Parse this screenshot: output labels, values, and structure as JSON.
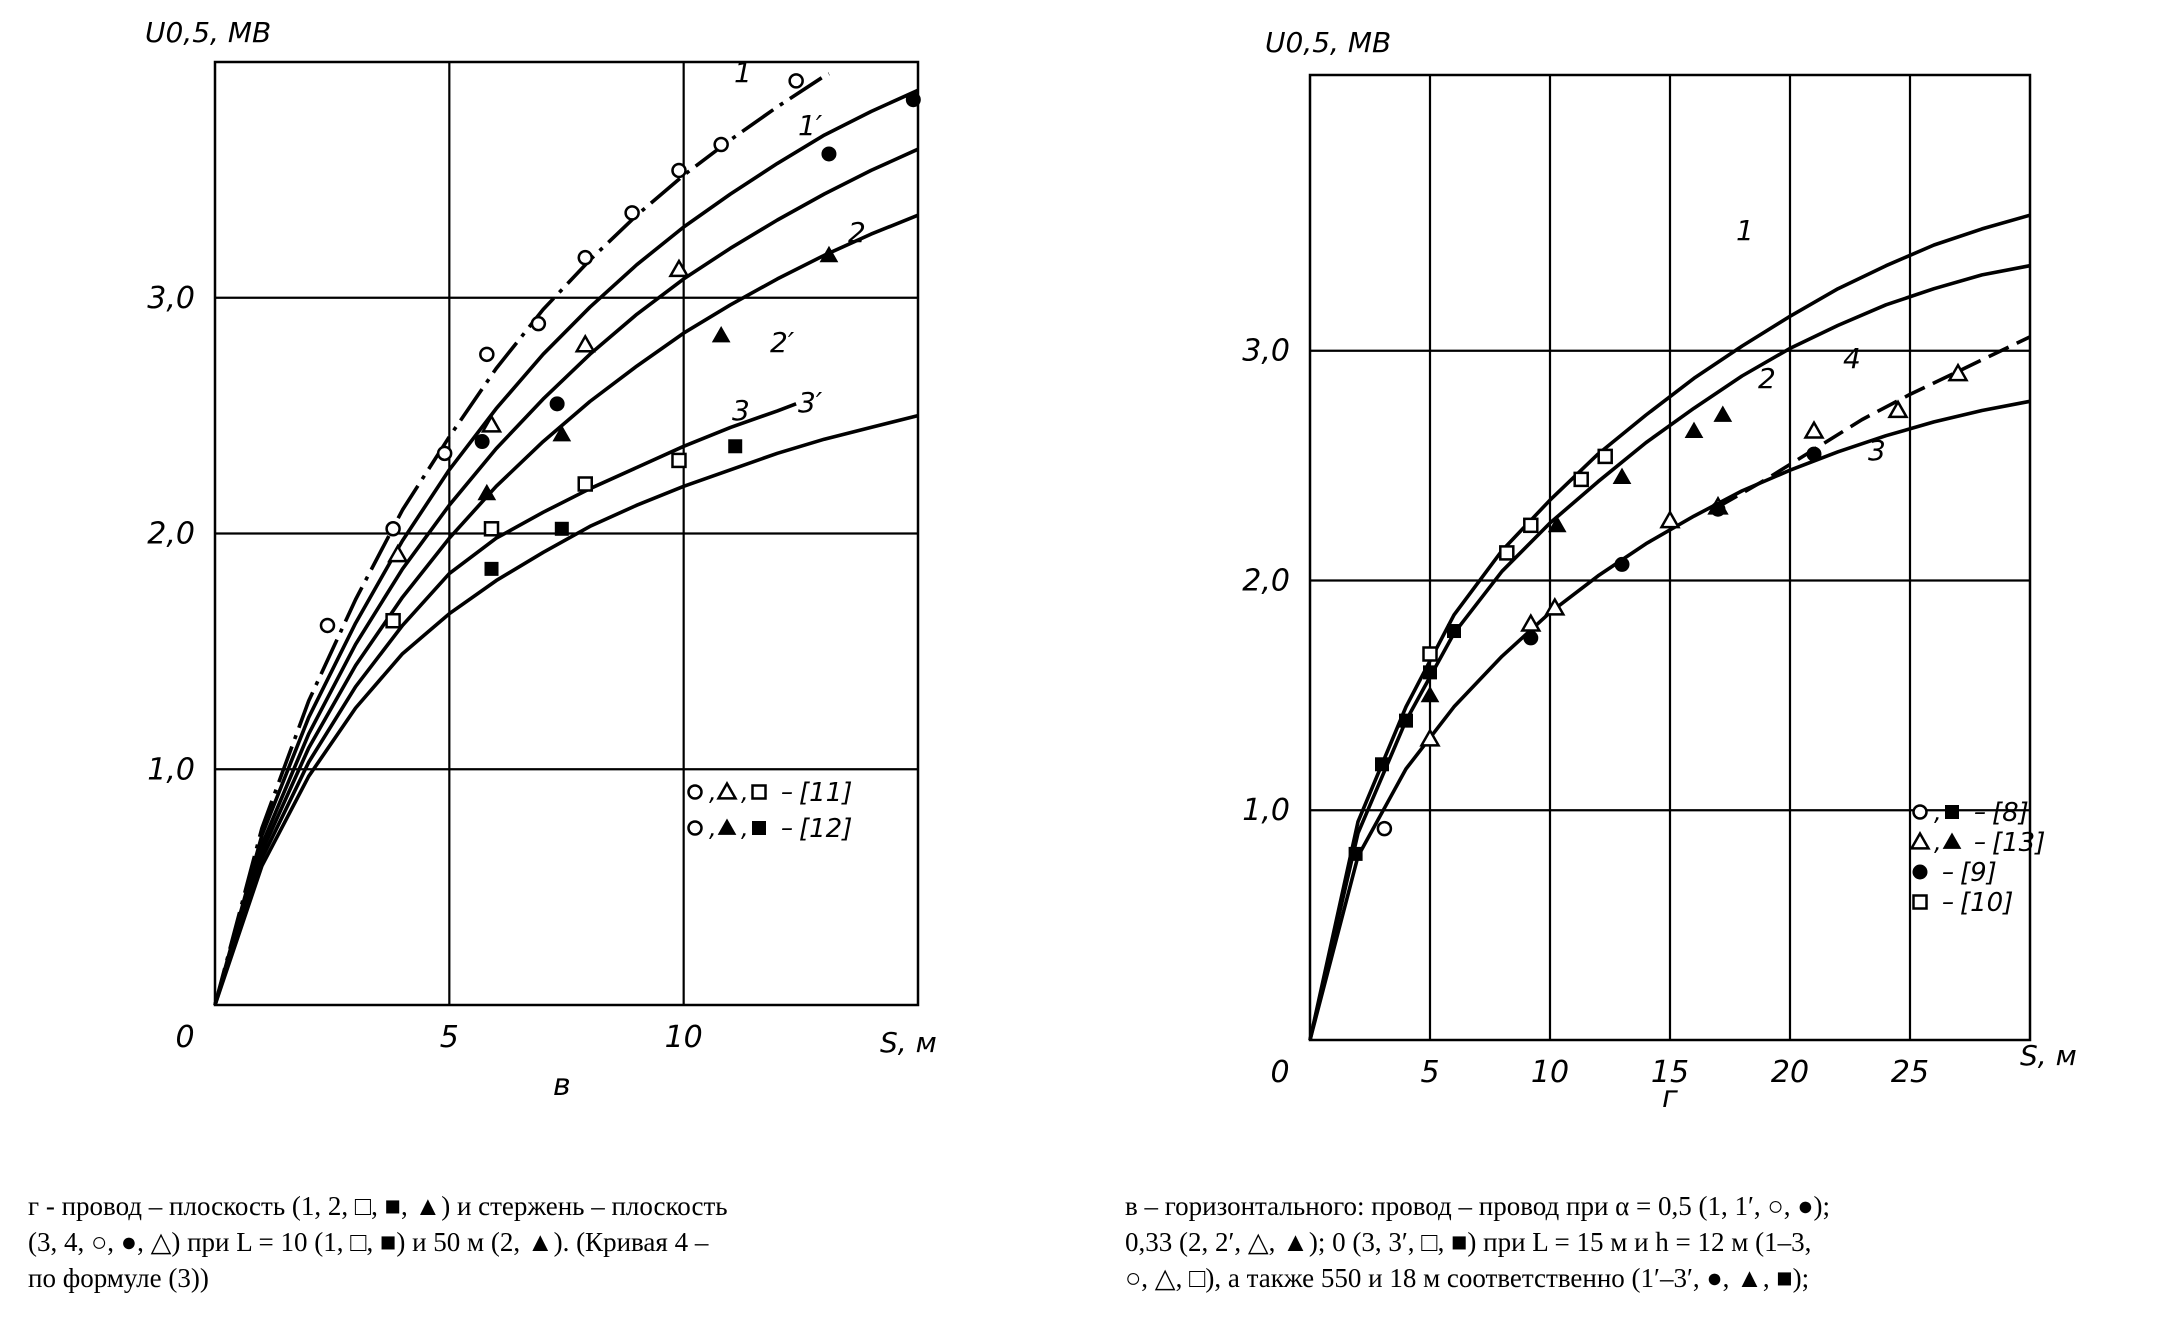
{
  "chart_data": [
    {
      "type": "line",
      "panel_label": "в",
      "ylabel": "U0,5, МВ",
      "xlabel": "S, м",
      "xlim": [
        0,
        15
      ],
      "ylim": [
        0,
        4.0
      ],
      "x_ticks": [
        0,
        5,
        10
      ],
      "x_tick_labels": [
        "0",
        "5",
        "10"
      ],
      "y_ticks": [
        1.0,
        2.0,
        3.0
      ],
      "y_tick_labels": [
        "1,0",
        "2,0",
        "3,0"
      ],
      "grid": true,
      "series": [
        {
          "name": "1",
          "style": "dashdot",
          "x": [
            0,
            1,
            2,
            3,
            4,
            5,
            6,
            7,
            8,
            9,
            10,
            11,
            12,
            13,
            13.1
          ],
          "y": [
            0,
            0.75,
            1.29,
            1.72,
            2.1,
            2.41,
            2.7,
            2.95,
            3.16,
            3.35,
            3.52,
            3.67,
            3.81,
            3.94,
            3.95
          ]
        },
        {
          "name": "1′",
          "style": "solid",
          "x": [
            0,
            1,
            2,
            3,
            4,
            5,
            6,
            7,
            8,
            9,
            10,
            11,
            12,
            13,
            14,
            15
          ],
          "y": [
            0,
            0.72,
            1.22,
            1.62,
            1.97,
            2.27,
            2.53,
            2.76,
            2.96,
            3.14,
            3.3,
            3.44,
            3.57,
            3.69,
            3.79,
            3.88
          ]
        },
        {
          "name": "2",
          "style": "solid",
          "x": [
            0,
            1,
            2,
            3,
            4,
            5,
            6,
            7,
            8,
            9,
            10,
            11,
            12,
            13,
            14,
            15
          ],
          "y": [
            0,
            0.68,
            1.15,
            1.53,
            1.85,
            2.12,
            2.36,
            2.57,
            2.76,
            2.93,
            3.08,
            3.21,
            3.33,
            3.44,
            3.54,
            3.63
          ]
        },
        {
          "name": "2′",
          "style": "solid",
          "x": [
            0,
            1,
            2,
            3,
            4,
            5,
            6,
            7,
            8,
            9,
            10,
            11,
            12,
            13,
            14,
            15
          ],
          "y": [
            0,
            0.65,
            1.09,
            1.44,
            1.73,
            1.98,
            2.2,
            2.39,
            2.56,
            2.71,
            2.85,
            2.97,
            3.08,
            3.18,
            3.27,
            3.35
          ]
        },
        {
          "name": "3",
          "style": "solid",
          "x": [
            0,
            1,
            2,
            3,
            4,
            5,
            6,
            7,
            8,
            9,
            10,
            11,
            12,
            12.4
          ],
          "y": [
            0,
            0.62,
            1.03,
            1.35,
            1.61,
            1.83,
            1.98,
            2.09,
            2.19,
            2.28,
            2.37,
            2.45,
            2.52,
            2.55
          ]
        },
        {
          "name": "3′",
          "style": "solid",
          "x": [
            0,
            1,
            2,
            3,
            4,
            5,
            6,
            7,
            8,
            9,
            10,
            11,
            12,
            13,
            14,
            15
          ],
          "y": [
            0,
            0.59,
            0.97,
            1.26,
            1.49,
            1.66,
            1.8,
            1.92,
            2.03,
            2.12,
            2.2,
            2.27,
            2.34,
            2.4,
            2.45,
            2.5
          ]
        }
      ],
      "points": [
        {
          "marker": "o",
          "x": [
            2.4,
            3.8,
            4.9,
            5.8,
            6.9,
            7.9,
            8.9,
            9.9,
            10.8,
            12.4
          ],
          "y": [
            1.61,
            2.02,
            2.34,
            2.76,
            2.89,
            3.17,
            3.36,
            3.54,
            3.65,
            3.92
          ]
        },
        {
          "marker": "triangle-open",
          "x": [
            3.9,
            5.9,
            7.9,
            9.9
          ],
          "y": [
            1.91,
            2.46,
            2.8,
            3.12
          ]
        },
        {
          "marker": "square-open",
          "x": [
            3.8,
            5.9,
            7.9,
            9.9
          ],
          "y": [
            1.63,
            2.02,
            2.21,
            2.31
          ]
        },
        {
          "marker": "filled-circle",
          "x": [
            5.7,
            7.3,
            13.1,
            14.9
          ],
          "y": [
            2.39,
            2.55,
            3.61,
            3.84
          ]
        },
        {
          "marker": "filled-triangle",
          "x": [
            5.8,
            7.4,
            10.8,
            13.1
          ],
          "y": [
            2.17,
            2.42,
            2.84,
            3.18
          ]
        },
        {
          "marker": "filled-square",
          "x": [
            5.9,
            7.4,
            11.1
          ],
          "y": [
            1.85,
            2.02,
            2.37
          ]
        }
      ],
      "legend": {
        "placement": "right",
        "entries": [
          {
            "markers": [
              "o",
              "triangle-open",
              "square-open"
            ],
            "label": "[11]"
          },
          {
            "markers": [
              "o",
              "filled-triangle",
              "filled-square"
            ],
            "label": "[12]"
          }
        ]
      }
    },
    {
      "type": "line",
      "panel_label": "г",
      "ylabel": "U0,5, МВ",
      "xlabel": "S, м",
      "xlim": [
        0,
        30
      ],
      "ylim": [
        0,
        4.2
      ],
      "x_ticks": [
        0,
        5,
        10,
        15,
        20,
        25
      ],
      "x_tick_labels": [
        "0",
        "5",
        "10",
        "15",
        "20",
        "25"
      ],
      "y_ticks": [
        1.0,
        2.0,
        3.0
      ],
      "y_tick_labels": [
        "1,0",
        "2,0",
        "3,0"
      ],
      "grid": true,
      "series": [
        {
          "name": "1",
          "style": "solid",
          "x": [
            0,
            2,
            4,
            6,
            8,
            10,
            12,
            14,
            16,
            18,
            20,
            22,
            24,
            26,
            28,
            30
          ],
          "y": [
            0,
            0.95,
            1.45,
            1.85,
            2.13,
            2.35,
            2.55,
            2.72,
            2.88,
            3.02,
            3.15,
            3.27,
            3.37,
            3.46,
            3.53,
            3.59
          ]
        },
        {
          "name": "2",
          "style": "solid",
          "x": [
            0,
            2,
            4,
            6,
            8,
            10,
            12,
            14,
            16,
            18,
            20,
            22,
            24,
            26,
            28,
            30
          ],
          "y": [
            0,
            0.9,
            1.39,
            1.77,
            2.04,
            2.25,
            2.43,
            2.6,
            2.75,
            2.89,
            3.01,
            3.11,
            3.2,
            3.27,
            3.33,
            3.37
          ]
        },
        {
          "name": "3",
          "style": "solid",
          "x": [
            0,
            2,
            4,
            6,
            8,
            10,
            12,
            14,
            16,
            18,
            20,
            22,
            24,
            26,
            28,
            30
          ],
          "y": [
            0,
            0.8,
            1.18,
            1.45,
            1.67,
            1.86,
            2.02,
            2.16,
            2.28,
            2.39,
            2.48,
            2.56,
            2.63,
            2.69,
            2.74,
            2.78
          ]
        },
        {
          "name": "4",
          "style": "dashed",
          "x": [
            17,
            19,
            21,
            23,
            25,
            27,
            29,
            30
          ],
          "y": [
            2.32,
            2.44,
            2.57,
            2.7,
            2.81,
            2.91,
            3.01,
            3.06
          ]
        }
      ],
      "points": [
        {
          "marker": "o",
          "x": [
            3.1
          ],
          "y": [
            0.92
          ]
        },
        {
          "marker": "filled-square",
          "x": [
            1.9,
            3.0,
            4.0,
            5.0,
            6.0
          ],
          "y": [
            0.81,
            1.2,
            1.39,
            1.6,
            1.78
          ]
        },
        {
          "marker": "triangle-open",
          "x": [
            5.0,
            9.2,
            10.2,
            15.0,
            17.0,
            21.0,
            24.5,
            27.0
          ],
          "y": [
            1.31,
            1.81,
            1.88,
            2.26,
            2.32,
            2.65,
            2.74,
            2.9
          ]
        },
        {
          "marker": "filled-triangle",
          "x": [
            5.0,
            10.3,
            13.0,
            16.0,
            17.2
          ],
          "y": [
            1.5,
            2.24,
            2.45,
            2.65,
            2.72
          ]
        },
        {
          "marker": "filled-circle",
          "x": [
            9.2,
            13.0,
            17.0,
            21.0
          ],
          "y": [
            1.75,
            2.07,
            2.31,
            2.55
          ]
        },
        {
          "marker": "square-open",
          "x": [
            5.0,
            8.2,
            9.2,
            11.3,
            12.3
          ],
          "y": [
            1.68,
            2.12,
            2.24,
            2.44,
            2.54
          ]
        }
      ],
      "legend": {
        "placement": "right",
        "entries": [
          {
            "markers": [
              "o",
              "filled-square"
            ],
            "label": "[8]"
          },
          {
            "markers": [
              "triangle-open",
              "filled-triangle"
            ],
            "label": "[13]"
          },
          {
            "markers": [
              "filled-circle"
            ],
            "label": "[9]"
          },
          {
            "markers": [
              "square-open"
            ],
            "label": "[10]"
          }
        ]
      }
    }
  ],
  "captions": {
    "left": [
      "г - провод – плоскость (1, 2, □, ■, ▲) и стержень – плоскость",
      "(3, 4, ○, ●, △) при L = 10 (1, □, ■) и 50 м (2, ▲). (Кривая 4 –",
      "по формуле (3))"
    ],
    "right": [
      "в – горизонтального: провод – провод при α = 0,5 (1, 1′, ○, ●);",
      "0,33 (2, 2′, △, ▲); 0 (3, 3′, □, ■) при L = 15 м и h = 12 м (1–3,",
      "○, △, □), а также 550 и 18 м соответственно (1′–3′, ●, ▲, ■);"
    ]
  }
}
